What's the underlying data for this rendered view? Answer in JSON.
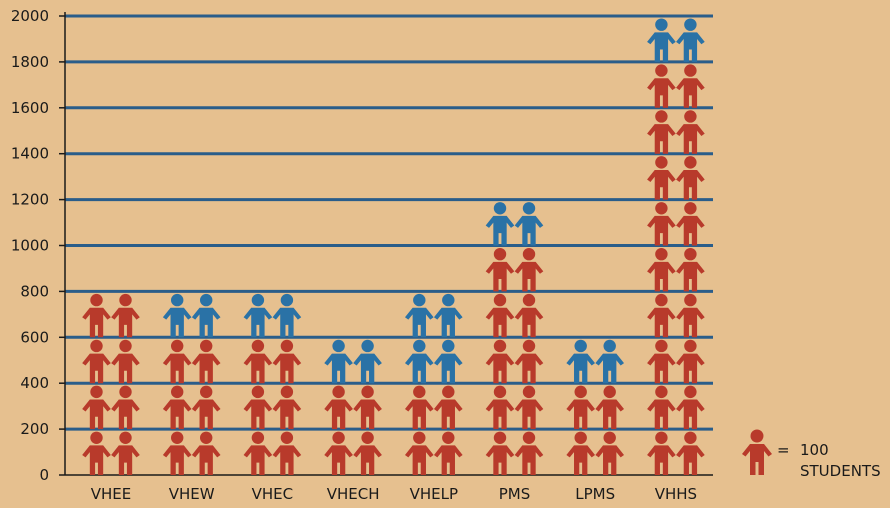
{
  "chart_data": {
    "type": "bar",
    "title": "",
    "xlabel": "",
    "ylabel": "",
    "ylim": [
      0,
      2000
    ],
    "yticks": [
      0,
      200,
      400,
      600,
      800,
      1000,
      1200,
      1400,
      1600,
      1800,
      2000
    ],
    "grid": true,
    "categories": [
      "VHEE",
      "VHEW",
      "VHEC",
      "VHECH",
      "VHELP",
      "PMS",
      "LPMS",
      "VHHS"
    ],
    "values": [
      800,
      800,
      800,
      600,
      800,
      1200,
      600,
      2000
    ],
    "highlight_units": [
      0,
      1,
      1,
      1,
      2,
      1,
      1,
      1
    ],
    "unit_value": 100,
    "icons_per_row": 2,
    "icon": "person-icon",
    "colors": {
      "background": "#e6c08f",
      "gridline": "#2a5d8a",
      "axis": "#1a1a1a",
      "person": "#b83a2b",
      "person_highlight": "#2a72a6"
    },
    "legend": {
      "position": "bottom-right",
      "equals": "=",
      "value": "100",
      "label": "STUDENTS"
    }
  }
}
